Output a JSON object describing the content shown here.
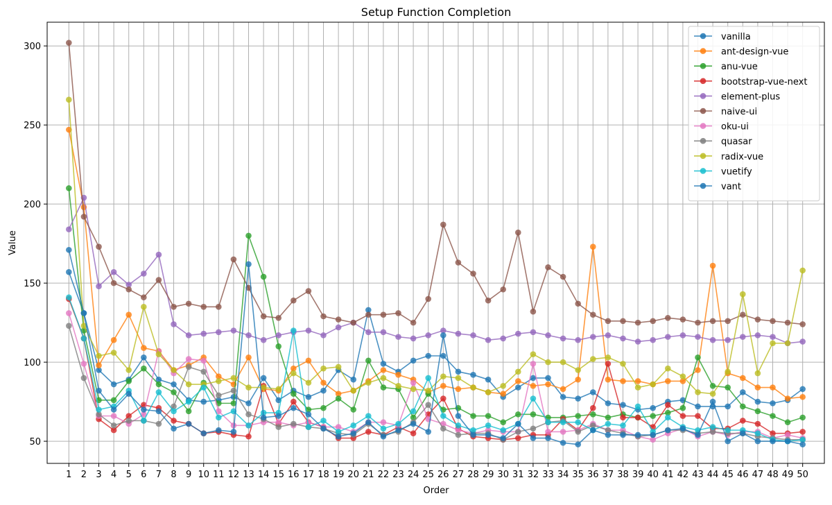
{
  "chart_data": {
    "type": "line",
    "title": "Setup Function Completion",
    "xlabel": "Order",
    "ylabel": "Value",
    "x": [
      1,
      2,
      3,
      4,
      5,
      6,
      7,
      8,
      9,
      10,
      11,
      12,
      13,
      14,
      15,
      16,
      17,
      18,
      19,
      20,
      21,
      22,
      23,
      24,
      25,
      26,
      27,
      28,
      29,
      30,
      31,
      32,
      33,
      34,
      35,
      36,
      37,
      38,
      39,
      40,
      41,
      42,
      43,
      44,
      45,
      46,
      47,
      48,
      49,
      50
    ],
    "xlim": [
      -0.45,
      51.45
    ],
    "ylim": [
      36,
      315
    ],
    "yticks": [
      50,
      100,
      150,
      200,
      250,
      300
    ],
    "grid": true,
    "legend_position": "top-right",
    "series": [
      {
        "name": "vanilla",
        "color": "#1f77b4",
        "values": [
          157,
          131,
          95,
          86,
          89,
          103,
          89,
          86,
          76,
          75,
          76,
          78,
          74,
          90,
          76,
          82,
          78,
          82,
          95,
          89,
          133,
          99,
          94,
          101,
          104,
          104,
          94,
          92,
          89,
          78,
          84,
          90,
          90,
          78,
          77,
          81,
          74,
          73,
          70,
          71,
          75,
          76,
          72,
          72,
          72,
          81,
          75,
          74,
          76,
          83
        ]
      },
      {
        "name": "ant-design-vue",
        "color": "#ff7f0e",
        "values": [
          247,
          198,
          98,
          114,
          130,
          109,
          107,
          95,
          98,
          103,
          91,
          86,
          103,
          83,
          82,
          96,
          101,
          87,
          80,
          82,
          88,
          95,
          92,
          89,
          81,
          85,
          83,
          84,
          81,
          80,
          88,
          85,
          86,
          83,
          89,
          173,
          89,
          88,
          88,
          86,
          88,
          88,
          95,
          161,
          93,
          90,
          84,
          84,
          77,
          78
        ]
      },
      {
        "name": "anu-vue",
        "color": "#2ca02c",
        "values": [
          210,
          120,
          76,
          76,
          88,
          96,
          86,
          81,
          69,
          87,
          74,
          74,
          180,
          154,
          110,
          80,
          70,
          71,
          77,
          70,
          101,
          84,
          83,
          65,
          80,
          70,
          71,
          66,
          66,
          62,
          67,
          67,
          65,
          65,
          66,
          67,
          65,
          67,
          65,
          66,
          68,
          71,
          103,
          85,
          84,
          72,
          69,
          66,
          62,
          65
        ]
      },
      {
        "name": "bootstrap-vue-next",
        "color": "#d62728",
        "values": [
          140,
          115,
          64,
          57,
          66,
          73,
          71,
          63,
          61,
          55,
          56,
          54,
          53,
          85,
          61,
          75,
          62,
          59,
          52,
          52,
          56,
          54,
          59,
          55,
          67,
          77,
          58,
          53,
          52,
          51,
          52,
          54,
          54,
          64,
          57,
          71,
          99,
          65,
          65,
          59,
          73,
          66,
          66,
          58,
          58,
          63,
          61,
          55,
          55,
          56
        ]
      },
      {
        "name": "element-plus",
        "color": "#9467bd",
        "values": [
          184,
          204,
          148,
          157,
          149,
          156,
          168,
          124,
          117,
          118,
          119,
          120,
          117,
          114,
          117,
          119,
          120,
          117,
          122,
          125,
          119,
          119,
          116,
          115,
          117,
          120,
          118,
          117,
          114,
          115,
          118,
          119,
          117,
          115,
          114,
          116,
          117,
          115,
          113,
          114,
          116,
          117,
          116,
          114,
          114,
          116,
          117,
          116,
          112,
          113
        ]
      },
      {
        "name": "naive-ui",
        "color": "#8c564b",
        "values": [
          302,
          192,
          173,
          150,
          146,
          141,
          152,
          135,
          137,
          135,
          135,
          165,
          147,
          129,
          128,
          139,
          145,
          129,
          127,
          125,
          130,
          130,
          131,
          125,
          140,
          187,
          163,
          156,
          139,
          146,
          182,
          132,
          160,
          154,
          137,
          130,
          126,
          126,
          125,
          126,
          128,
          127,
          125,
          126,
          126,
          130,
          127,
          126,
          125,
          124
        ]
      },
      {
        "name": "oku-ui",
        "color": "#e377c2",
        "values": [
          131,
          99,
          66,
          66,
          61,
          67,
          107,
          93,
          102,
          101,
          69,
          60,
          60,
          62,
          62,
          60,
          62,
          59,
          59,
          56,
          62,
          62,
          60,
          87,
          64,
          61,
          57,
          55,
          57,
          56,
          56,
          99,
          56,
          56,
          57,
          61,
          57,
          57,
          53,
          51,
          55,
          58,
          53,
          56,
          54,
          56,
          56,
          52,
          54,
          52
        ]
      },
      {
        "name": "quasar",
        "color": "#7f7f7f",
        "values": [
          123,
          90,
          67,
          60,
          63,
          63,
          61,
          72,
          97,
          94,
          79,
          82,
          67,
          64,
          59,
          61,
          59,
          58,
          55,
          54,
          61,
          54,
          56,
          62,
          73,
          58,
          54,
          55,
          55,
          51,
          56,
          58,
          62,
          63,
          56,
          60,
          57,
          55,
          53,
          54,
          57,
          57,
          55,
          56,
          55,
          55,
          53,
          52,
          51,
          51
        ]
      },
      {
        "name": "radix-vue",
        "color": "#bcbd22",
        "values": [
          266,
          123,
          104,
          106,
          95,
          135,
          105,
          95,
          86,
          86,
          88,
          90,
          84,
          84,
          83,
          93,
          87,
          96,
          97,
          82,
          87,
          90,
          85,
          83,
          82,
          91,
          90,
          84,
          81,
          85,
          94,
          105,
          100,
          100,
          95,
          102,
          103,
          99,
          84,
          86,
          96,
          91,
          81,
          80,
          94,
          143,
          93,
          112,
          112,
          158
        ]
      },
      {
        "name": "vuetify",
        "color": "#17becf",
        "values": [
          141,
          115,
          70,
          72,
          82,
          63,
          81,
          69,
          75,
          84,
          65,
          69,
          60,
          68,
          68,
          120,
          59,
          63,
          56,
          60,
          66,
          58,
          61,
          69,
          90,
          66,
          60,
          57,
          60,
          57,
          61,
          77,
          62,
          62,
          62,
          57,
          61,
          60,
          72,
          56,
          65,
          59,
          57,
          59,
          57,
          57,
          55,
          51,
          50,
          51
        ]
      },
      {
        "name": "vant",
        "color": "#1f77b4",
        "values": [
          171,
          131,
          82,
          70,
          80,
          70,
          69,
          58,
          61,
          55,
          57,
          56,
          162,
          65,
          66,
          71,
          67,
          58,
          53,
          55,
          62,
          53,
          57,
          61,
          56,
          117,
          66,
          54,
          54,
          52,
          61,
          52,
          52,
          49,
          48,
          57,
          54,
          54,
          54,
          54,
          57,
          58,
          54,
          75,
          50,
          55,
          50,
          50,
          50,
          48
        ]
      }
    ]
  }
}
